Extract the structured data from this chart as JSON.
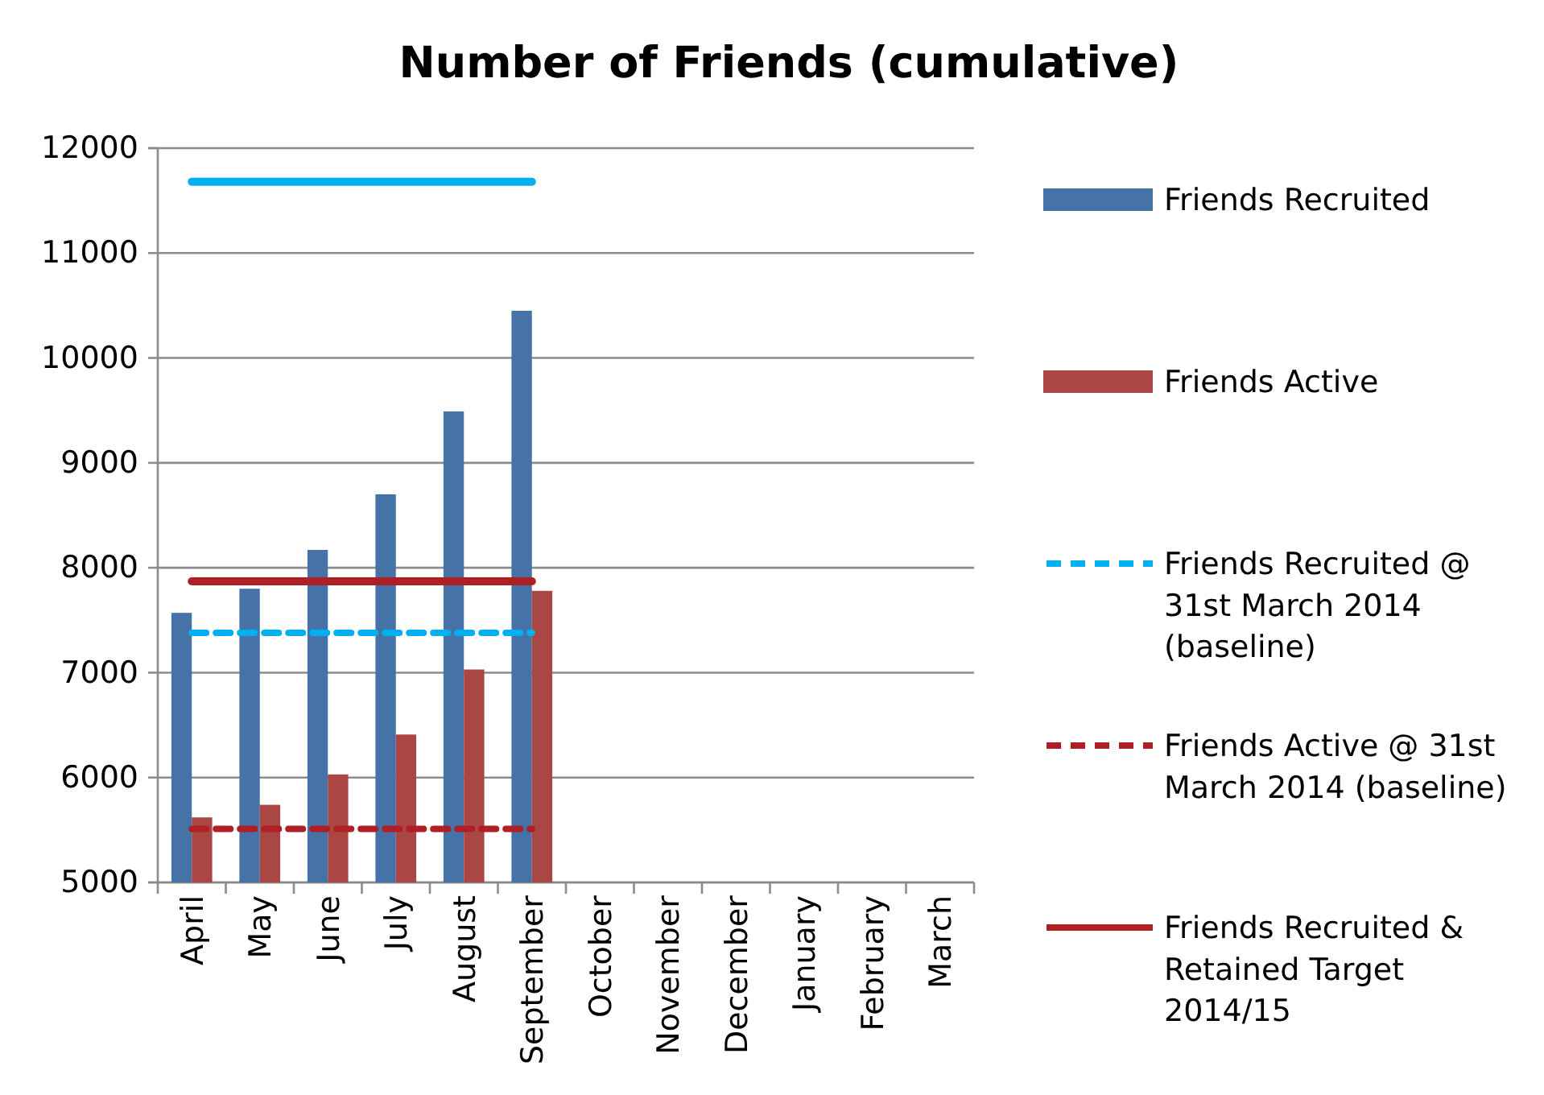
{
  "chart_data": {
    "type": "bar",
    "title": "Number of Friends (cumulative)",
    "categories": [
      "April",
      "May",
      "June",
      "July",
      "August",
      "September",
      "October",
      "November",
      "December",
      "January",
      "February",
      "March"
    ],
    "series": [
      {
        "name": "Friends Recruited",
        "color": "#4572a7",
        "values": [
          7570,
          7800,
          8170,
          8700,
          9490,
          10450,
          null,
          null,
          null,
          null,
          null,
          null
        ]
      },
      {
        "name": "Friends Active",
        "color": "#aa4643",
        "values": [
          5620,
          5740,
          6030,
          6410,
          7030,
          7780,
          null,
          null,
          null,
          null,
          null,
          null
        ]
      },
      {
        "name": "Friends Recruited @ 31st March 2014 (baseline)",
        "type": "line",
        "line_style": "dashed",
        "color": "#00b0f0",
        "values": [
          7380,
          7380,
          7380,
          7380,
          7380,
          7380,
          null,
          null,
          null,
          null,
          null,
          null
        ]
      },
      {
        "name": "Friends Active @ 31st March 2014 (baseline)",
        "type": "line",
        "line_style": "dashed",
        "color": "#b01f24",
        "values": [
          5510,
          5510,
          5510,
          5510,
          5510,
          5510,
          null,
          null,
          null,
          null,
          null,
          null
        ]
      },
      {
        "name": "Friends Recruited & Retained Target 2014/15",
        "type": "line",
        "line_style": "solid",
        "color": "#b01f24",
        "values": [
          7870,
          7870,
          7870,
          7870,
          7870,
          7870,
          null,
          null,
          null,
          null,
          null,
          null
        ]
      },
      {
        "type": "line",
        "line_style": "solid",
        "color": "#00b0f0",
        "values": [
          11680,
          11680,
          11680,
          11680,
          11680,
          11680,
          null,
          null,
          null,
          null,
          null,
          null
        ]
      }
    ],
    "ylim": [
      5000,
      12000
    ],
    "yticks": [
      5000,
      6000,
      7000,
      8000,
      9000,
      10000,
      11000,
      12000
    ],
    "grid": "y",
    "legend": "right"
  }
}
